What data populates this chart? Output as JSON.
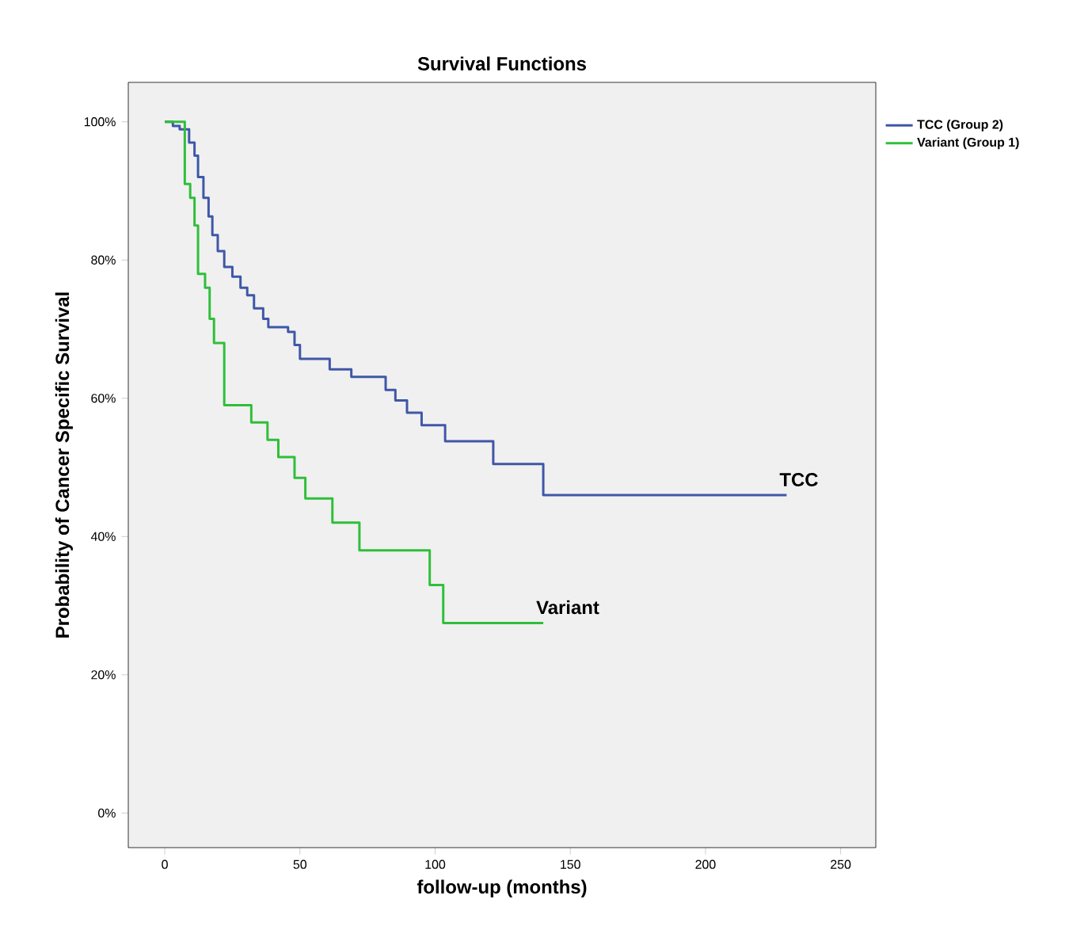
{
  "chart_data": {
    "type": "step",
    "title": "Survival Functions",
    "xlabel": "follow-up (months)",
    "ylabel": "Probability of Cancer Specific Survival",
    "xlim": [
      -13.5,
      263
    ],
    "ylim": [
      -5,
      105.7
    ],
    "xticks": [
      0,
      50,
      100,
      150,
      200,
      250
    ],
    "yticks": [
      {
        "value": 0,
        "label": "0%"
      },
      {
        "value": 20,
        "label": "20%"
      },
      {
        "value": 40,
        "label": "40%"
      },
      {
        "value": 60,
        "label": "60%"
      },
      {
        "value": 80,
        "label": "80%"
      },
      {
        "value": 100,
        "label": "100%"
      }
    ],
    "legend": "top right",
    "grid": false,
    "series": [
      {
        "name": "TCC (Group 2)",
        "color": "#3f57a8",
        "x": [
          0,
          3,
          5.5,
          9,
          11,
          12.3,
          14.3,
          16.2,
          17.6,
          19.6,
          22,
          25,
          28,
          30.5,
          33,
          36.4,
          38.3,
          45.6,
          48,
          50,
          61,
          69,
          81.7,
          85.3,
          89.6,
          95,
          103.7,
          121.5,
          140,
          230
        ],
        "values": [
          100,
          99.4,
          98.9,
          97,
          95.1,
          92,
          89,
          86.3,
          83.6,
          81.3,
          79,
          77.6,
          76,
          74.9,
          73,
          71.5,
          70.3,
          69.6,
          67.7,
          65.7,
          64.2,
          63.1,
          61.2,
          59.7,
          57.9,
          56.1,
          53.8,
          50.5,
          46,
          46
        ]
      },
      {
        "name": "Variant (Group 1)",
        "color": "#2fbf3a",
        "x": [
          0,
          7.4,
          9.4,
          11,
          12.3,
          14.9,
          16.6,
          18.2,
          22,
          32,
          38,
          42,
          48,
          52,
          62,
          72,
          98,
          103,
          140
        ],
        "values": [
          100,
          91,
          89,
          85,
          78,
          76,
          71.5,
          68,
          59,
          56.5,
          54,
          51.5,
          48.5,
          45.5,
          42,
          38,
          33,
          27.5,
          27.5
        ]
      }
    ],
    "annotations": [
      {
        "text": "TCC",
        "x": 230,
        "y": 46
      },
      {
        "text": "Variant",
        "x": 140,
        "y": 27.5
      }
    ]
  }
}
